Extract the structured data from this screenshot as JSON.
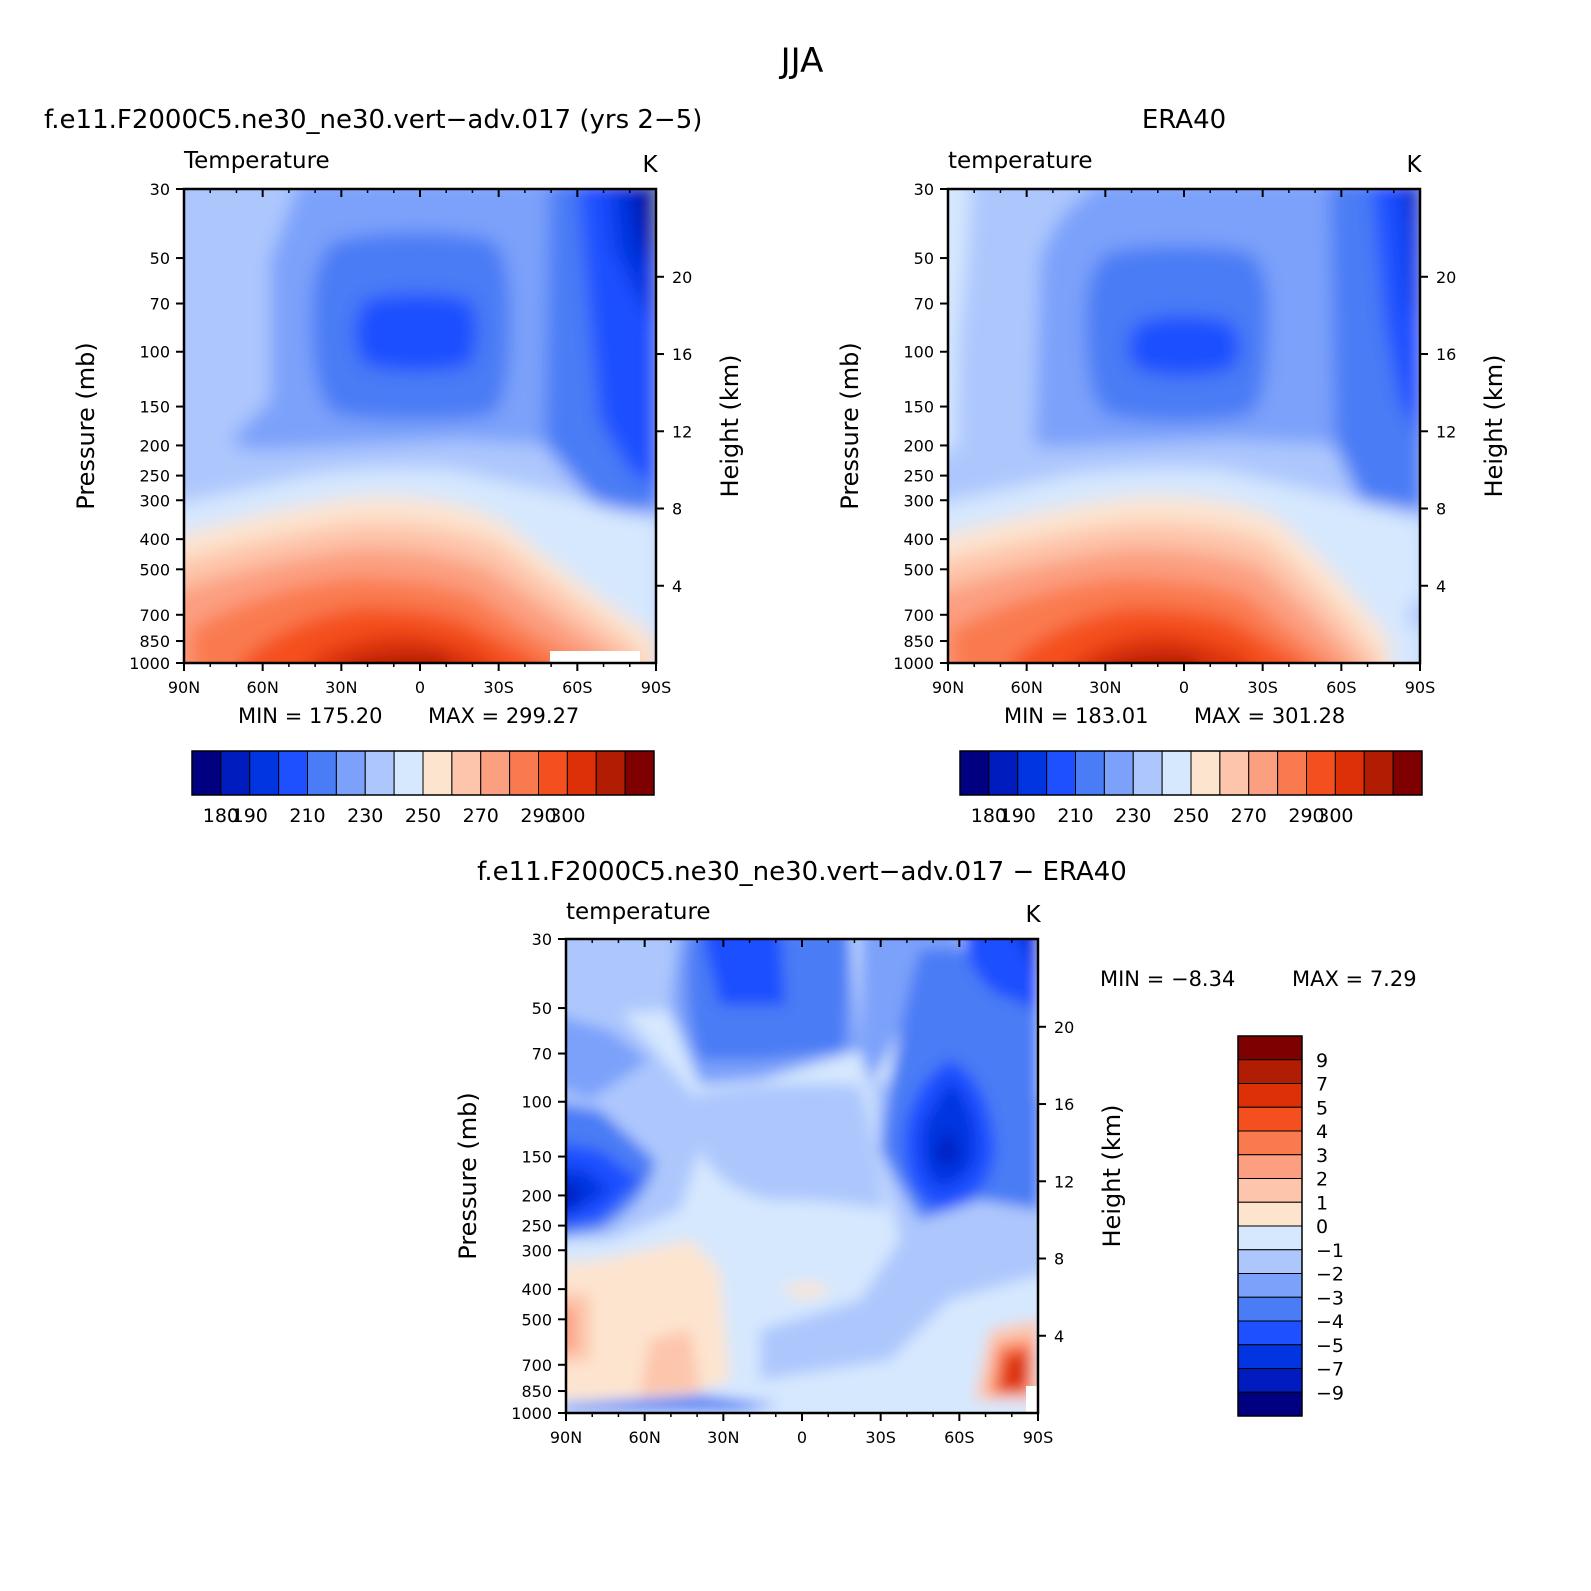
{
  "figure": {
    "super_title": "JJA"
  },
  "chart_data": [
    {
      "type": "heatmap",
      "title": "f.e11.F2000C5.ne30_ne30.vert−adv.017 (yrs 2−5)",
      "field_label": "Temperature",
      "units": "K",
      "ylabel": "Pressure (mb)",
      "y2label": "Height (km)",
      "x_ticks": [
        "90N",
        "60N",
        "30N",
        "0",
        "30S",
        "60S",
        "90S"
      ],
      "y_ticks": [
        30,
        50,
        70,
        100,
        150,
        200,
        250,
        300,
        400,
        500,
        700,
        850,
        1000
      ],
      "y2_ticks": [
        20,
        16,
        12,
        8,
        4
      ],
      "min_text": "MIN = 175.20",
      "max_text": "MAX = 299.27",
      "min": 175.2,
      "max": 299.27,
      "colorbar": {
        "orientation": "horizontal",
        "levels": [
          180,
          190,
          200,
          210,
          220,
          230,
          240,
          250,
          260,
          270,
          280,
          290,
          300
        ],
        "labels": [
          "180",
          "190",
          "210",
          "230",
          "250",
          "270",
          "290",
          "300"
        ],
        "colors": [
          "#000080",
          "#001cbe",
          "#0035e0",
          "#1e50ff",
          "#4a7cf5",
          "#7ca1fa",
          "#adc7fd",
          "#d6e8fe",
          "#fde4cf",
          "#fdc5ab",
          "#fc9f80",
          "#fa7a50",
          "#f44f1f",
          "#dd3007",
          "#b01d02",
          "#7f0000"
        ]
      }
    },
    {
      "type": "heatmap",
      "title": "ERA40",
      "field_label": "temperature",
      "units": "K",
      "ylabel": "Pressure (mb)",
      "y2label": "Height (km)",
      "x_ticks": [
        "90N",
        "60N",
        "30N",
        "0",
        "30S",
        "60S",
        "90S"
      ],
      "y_ticks": [
        30,
        50,
        70,
        100,
        150,
        200,
        250,
        300,
        400,
        500,
        700,
        850,
        1000
      ],
      "y2_ticks": [
        20,
        16,
        12,
        8,
        4
      ],
      "min_text": "MIN = 183.01",
      "max_text": "MAX = 301.28",
      "min": 183.01,
      "max": 301.28,
      "colorbar": {
        "orientation": "horizontal",
        "levels": [
          180,
          190,
          200,
          210,
          220,
          230,
          240,
          250,
          260,
          270,
          280,
          290,
          300
        ],
        "labels": [
          "180",
          "190",
          "210",
          "230",
          "250",
          "270",
          "290",
          "300"
        ],
        "colors": [
          "#000080",
          "#001cbe",
          "#0035e0",
          "#1e50ff",
          "#4a7cf5",
          "#7ca1fa",
          "#adc7fd",
          "#d6e8fe",
          "#fde4cf",
          "#fdc5ab",
          "#fc9f80",
          "#fa7a50",
          "#f44f1f",
          "#dd3007",
          "#b01d02",
          "#7f0000"
        ]
      }
    },
    {
      "type": "heatmap",
      "title": "f.e11.F2000C5.ne30_ne30.vert−adv.017 − ERA40",
      "field_label": "temperature",
      "units": "K",
      "ylabel": "Pressure (mb)",
      "y2label": "Height (km)",
      "x_ticks": [
        "90N",
        "60N",
        "30N",
        "0",
        "30S",
        "60S",
        "90S"
      ],
      "y_ticks": [
        30,
        50,
        70,
        100,
        150,
        200,
        250,
        300,
        400,
        500,
        700,
        850,
        1000
      ],
      "y2_ticks": [
        20,
        16,
        12,
        8,
        4
      ],
      "min_text": "MIN = −8.34",
      "max_text": "MAX = 7.29",
      "min": -8.34,
      "max": 7.29,
      "colorbar": {
        "orientation": "vertical",
        "labels": [
          "9",
          "7",
          "5",
          "4",
          "3",
          "2",
          "1",
          "0",
          "−1",
          "−2",
          "−3",
          "−4",
          "−5",
          "−7",
          "−9"
        ],
        "colors": [
          "#7f0000",
          "#b01d02",
          "#dd3007",
          "#f44f1f",
          "#fa7a50",
          "#fc9f80",
          "#fdc5ab",
          "#fde4cf",
          "#d6e8fe",
          "#adc7fd",
          "#7ca1fa",
          "#4a7cf5",
          "#1e50ff",
          "#0035e0",
          "#001cbe",
          "#000080"
        ]
      }
    }
  ]
}
